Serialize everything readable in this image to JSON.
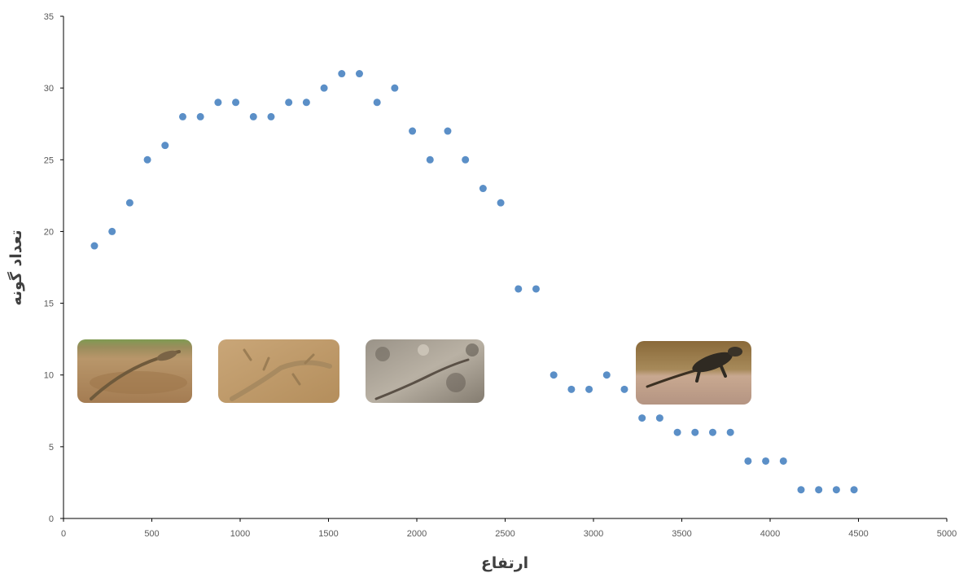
{
  "chart_data": {
    "type": "scatter",
    "title": "",
    "xlabel": "ارتفاع",
    "ylabel": "تعداد گونه",
    "xlim": [
      0,
      5000
    ],
    "ylim": [
      0,
      35
    ],
    "x_ticks": [
      0,
      500,
      1000,
      1500,
      2000,
      2500,
      3000,
      3500,
      4000,
      4500,
      5000
    ],
    "y_ticks": [
      0,
      5,
      10,
      15,
      20,
      25,
      30,
      35
    ],
    "grid": false,
    "legend": "none",
    "point_color": "#5b8fc7",
    "series": [
      {
        "x": [
          175,
          275,
          375,
          475,
          575,
          675,
          775,
          875,
          975,
          1075,
          1175,
          1275,
          1375,
          1475,
          1575,
          1675,
          1775,
          1875,
          1975,
          2075,
          2175,
          2275,
          2375,
          2475,
          2575,
          2675,
          2775,
          2875,
          2975,
          3075,
          3175,
          3275,
          3375,
          3475,
          3575,
          3675,
          3775,
          3875,
          3975,
          4075,
          4175,
          4275,
          4375,
          4475
        ],
        "y": [
          19,
          20,
          22,
          25,
          26,
          28,
          28,
          29,
          29,
          28,
          28,
          29,
          29,
          30,
          31,
          31,
          29,
          30,
          27,
          25,
          27,
          25,
          23,
          22,
          16,
          16,
          10,
          9,
          9,
          10,
          9,
          7,
          7,
          6,
          6,
          6,
          6,
          4,
          4,
          4,
          2,
          2,
          2,
          2
        ]
      }
    ],
    "images": [
      {
        "name": "lizard-photo-1",
        "subject": "lizard on sand"
      },
      {
        "name": "lizard-photo-2",
        "subject": "lizard on sand"
      },
      {
        "name": "lizard-photo-3",
        "subject": "lizard on rocky ground"
      },
      {
        "name": "lizard-photo-4",
        "subject": "lizard on rock"
      }
    ]
  }
}
